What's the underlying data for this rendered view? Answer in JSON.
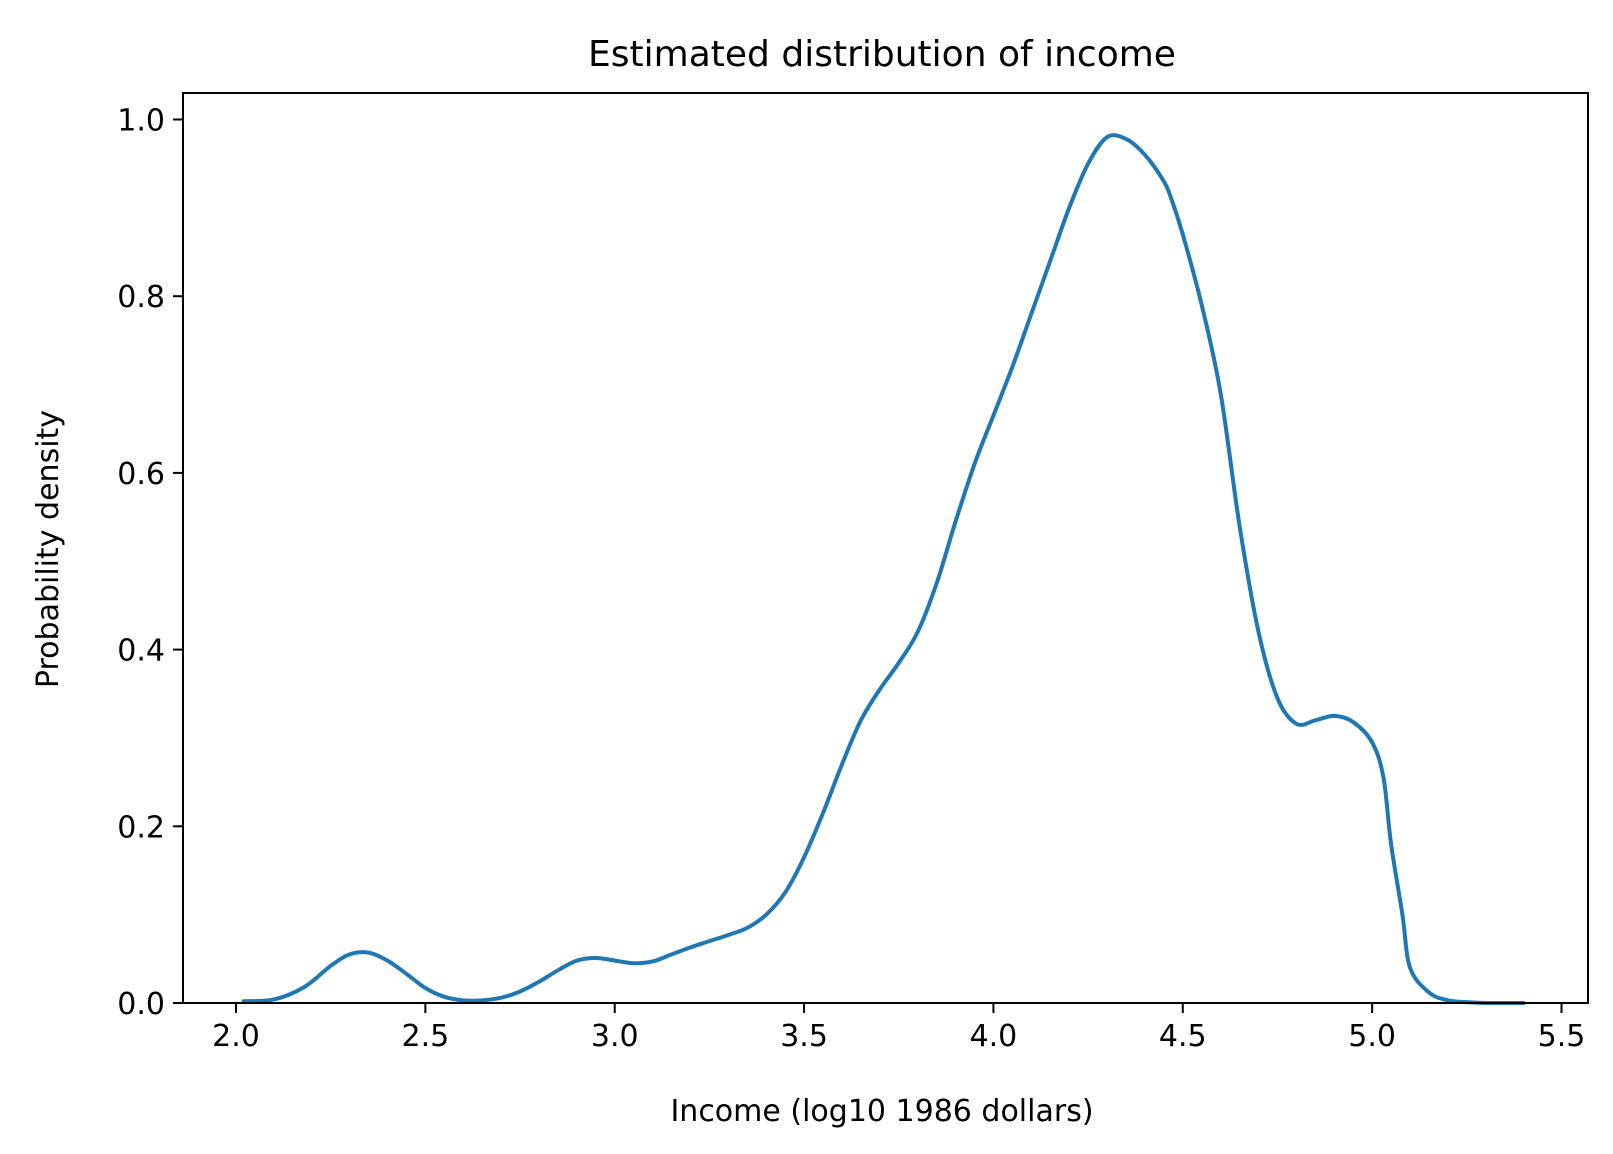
{
  "chart_data": {
    "type": "line",
    "title": "Estimated distribution of income",
    "xlabel": "Income (log10 1986 dollars)",
    "ylabel": "Probability density",
    "xlim": [
      1.86,
      5.57
    ],
    "ylim": [
      0.0,
      1.03
    ],
    "xticks": [
      2.0,
      2.5,
      3.0,
      3.5,
      4.0,
      4.5,
      5.0,
      5.5
    ],
    "xtick_labels": [
      "2.0",
      "2.5",
      "3.0",
      "3.5",
      "4.0",
      "4.5",
      "5.0",
      "5.5"
    ],
    "yticks": [
      0.0,
      0.2,
      0.4,
      0.6,
      0.8,
      1.0
    ],
    "ytick_labels": [
      "0.0",
      "0.2",
      "0.4",
      "0.6",
      "0.8",
      "1.0"
    ],
    "grid": false,
    "series": [
      {
        "color": "#1f77b4",
        "x": [
          2.02,
          2.1,
          2.18,
          2.25,
          2.3,
          2.35,
          2.4,
          2.45,
          2.5,
          2.55,
          2.6,
          2.65,
          2.7,
          2.75,
          2.8,
          2.85,
          2.9,
          2.95,
          3.0,
          3.05,
          3.1,
          3.15,
          3.2,
          3.25,
          3.3,
          3.35,
          3.4,
          3.45,
          3.5,
          3.55,
          3.6,
          3.65,
          3.7,
          3.75,
          3.8,
          3.85,
          3.9,
          3.95,
          4.0,
          4.05,
          4.1,
          4.15,
          4.2,
          4.25,
          4.3,
          4.35,
          4.4,
          4.45,
          4.47,
          4.5,
          4.55,
          4.6,
          4.65,
          4.7,
          4.75,
          4.8,
          4.85,
          4.9,
          4.95,
          5.0,
          5.03,
          5.05,
          5.08,
          5.1,
          5.15,
          5.2,
          5.25,
          5.3,
          5.35,
          5.4
        ],
        "y": [
          0.002,
          0.004,
          0.018,
          0.042,
          0.055,
          0.057,
          0.048,
          0.033,
          0.017,
          0.007,
          0.003,
          0.003,
          0.006,
          0.013,
          0.024,
          0.037,
          0.048,
          0.051,
          0.048,
          0.045,
          0.047,
          0.055,
          0.063,
          0.07,
          0.077,
          0.085,
          0.1,
          0.125,
          0.165,
          0.215,
          0.27,
          0.32,
          0.355,
          0.385,
          0.42,
          0.475,
          0.545,
          0.61,
          0.665,
          0.72,
          0.78,
          0.84,
          0.9,
          0.95,
          0.98,
          0.978,
          0.96,
          0.93,
          0.91,
          0.87,
          0.79,
          0.69,
          0.54,
          0.42,
          0.345,
          0.316,
          0.32,
          0.325,
          0.318,
          0.295,
          0.255,
          0.18,
          0.1,
          0.04,
          0.012,
          0.003,
          0.001,
          0.0,
          0.0,
          0.0
        ]
      }
    ]
  }
}
